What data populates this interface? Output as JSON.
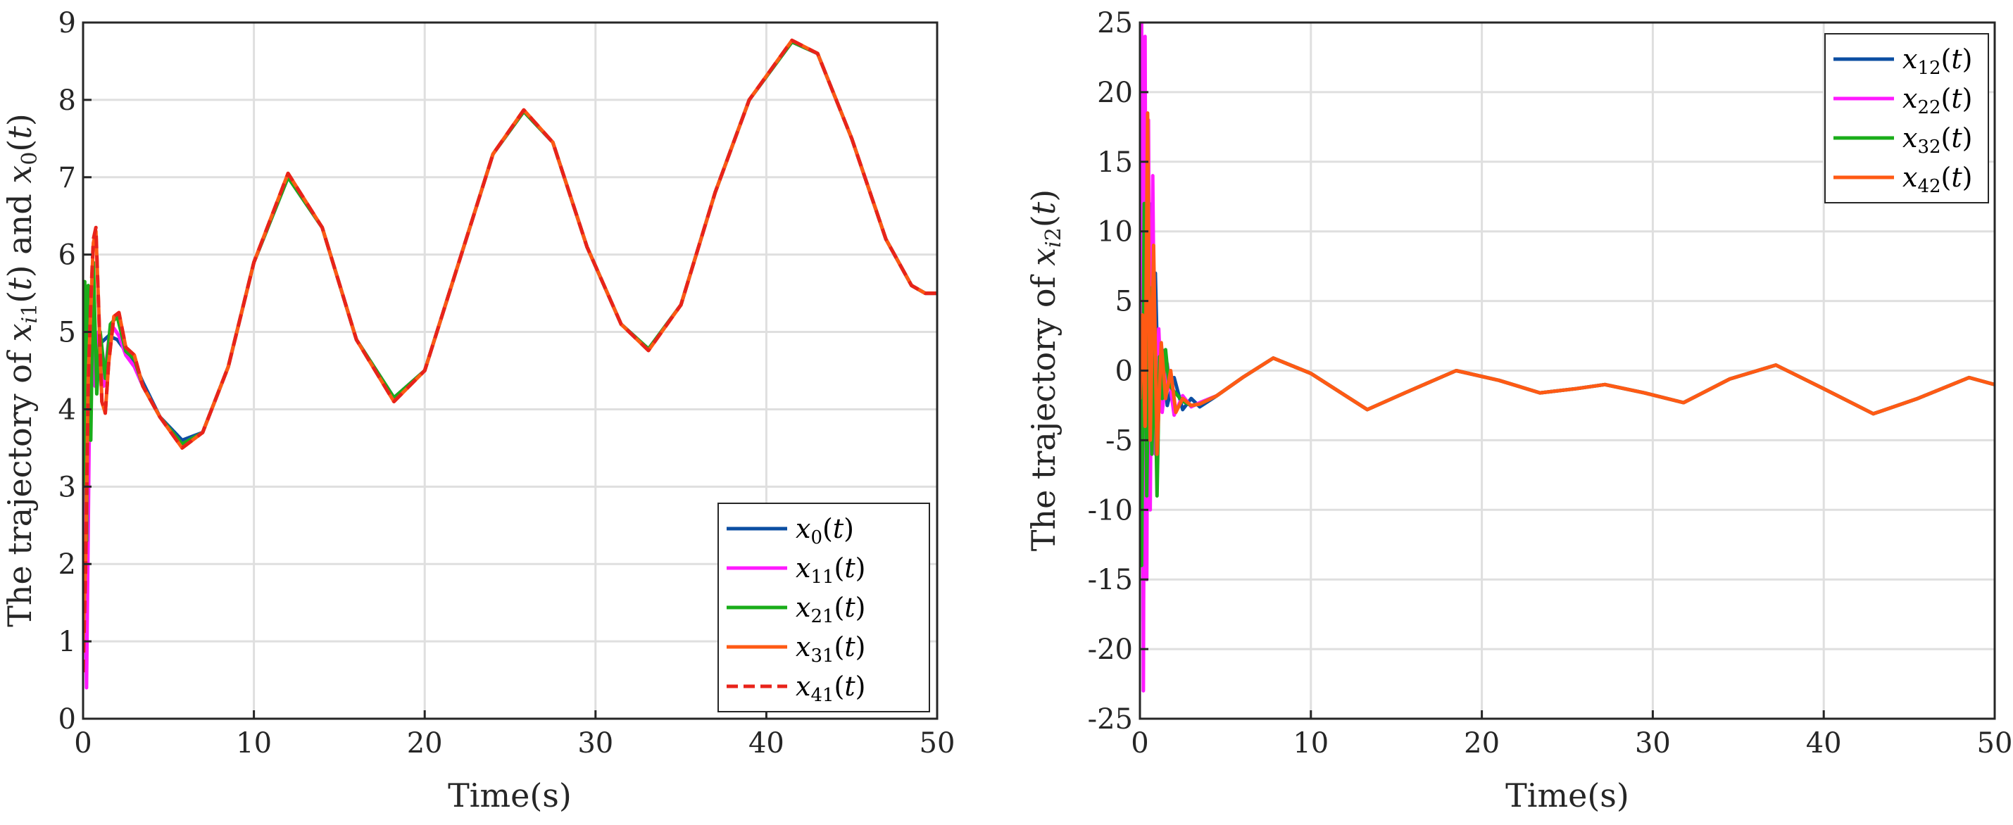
{
  "chart_data": [
    {
      "type": "line",
      "xlabel": "Time(s)",
      "ylabel": "The trajectory of x_i1(t) and x_0(t)",
      "xlim": [
        0,
        50
      ],
      "ylim": [
        0,
        9
      ],
      "xticks": [
        "0",
        "10",
        "20",
        "30",
        "40",
        "50"
      ],
      "yticks": [
        "0",
        "1",
        "2",
        "3",
        "4",
        "5",
        "6",
        "7",
        "8",
        "9"
      ],
      "grid": true,
      "legend_position": "bottom-right",
      "series": [
        {
          "name": "x_0(t)",
          "legend": "x0(t)",
          "color": "#0b4ea2",
          "dash": "solid",
          "x": [
            0,
            0.3,
            0.6,
            1.0,
            1.5,
            2.0,
            2.5,
            3.0,
            3.5,
            4.5,
            5.8,
            7,
            8.5,
            10,
            12,
            14,
            16,
            18.2,
            20,
            22,
            24,
            25.8,
            27.5,
            29.5,
            31.5,
            33.1,
            35,
            37,
            39,
            41.5,
            43,
            45,
            47,
            48.5,
            49.3,
            50
          ],
          "y": [
            4.0,
            4.3,
            4.6,
            4.85,
            4.95,
            4.9,
            4.75,
            4.6,
            4.35,
            3.9,
            3.6,
            3.7,
            4.55,
            5.9,
            7.0,
            6.35,
            4.9,
            4.15,
            4.5,
            5.9,
            7.3,
            7.85,
            7.45,
            6.1,
            5.1,
            4.78,
            5.35,
            6.8,
            8.0,
            8.75,
            8.6,
            7.5,
            6.2,
            5.6,
            5.5,
            5.5
          ]
        },
        {
          "name": "x_11(t)",
          "legend": "x11(t)",
          "color": "#ff1aff",
          "dash": "solid",
          "x": [
            0,
            0.2,
            0.35,
            0.5,
            0.7,
            0.9,
            1.2,
            1.5,
            1.8,
            2.1,
            2.5,
            3.0,
            3.5,
            4.5,
            5.8,
            7,
            8.5,
            10,
            12,
            14,
            16,
            18.2,
            20,
            22,
            24,
            25.8,
            27.5,
            29.5,
            31.5,
            33.1,
            35,
            37,
            39,
            41.5,
            43,
            45,
            47,
            48.5,
            49.3,
            50
          ],
          "y": [
            4.0,
            0.4,
            3.5,
            5.1,
            4.3,
            5.0,
            4.3,
            4.9,
            5.05,
            4.95,
            4.7,
            4.55,
            4.3,
            3.9,
            3.55,
            3.7,
            4.55,
            5.9,
            7.0,
            6.35,
            4.9,
            4.15,
            4.5,
            5.9,
            7.3,
            7.85,
            7.45,
            6.1,
            5.1,
            4.78,
            5.35,
            6.8,
            8.0,
            8.75,
            8.6,
            7.5,
            6.2,
            5.6,
            5.5,
            5.5
          ]
        },
        {
          "name": "x_21(t)",
          "legend": "x21(t)",
          "color": "#1aad1a",
          "dash": "solid",
          "x": [
            0,
            0.1,
            0.2,
            0.3,
            0.45,
            0.6,
            0.8,
            1.0,
            1.3,
            1.6,
            2.0,
            2.5,
            3.0,
            3.5,
            4.5,
            5.8,
            7,
            8.5,
            10,
            12,
            14,
            16,
            18.2,
            20,
            22,
            24,
            25.8,
            27.5,
            29.5,
            31.5,
            33.1,
            35,
            37,
            39,
            41.5,
            43,
            45,
            47,
            48.5,
            49.3,
            50
          ],
          "y": [
            3.0,
            5.65,
            2.3,
            5.6,
            3.6,
            5.9,
            4.2,
            5.0,
            4.4,
            5.1,
            5.2,
            4.75,
            4.65,
            4.3,
            3.9,
            3.55,
            3.7,
            4.55,
            5.9,
            7.0,
            6.35,
            4.9,
            4.15,
            4.5,
            5.9,
            7.3,
            7.85,
            7.45,
            6.1,
            5.1,
            4.78,
            5.35,
            6.8,
            8.0,
            8.75,
            8.6,
            7.5,
            6.2,
            5.6,
            5.5,
            5.5
          ]
        },
        {
          "name": "x_31(t)",
          "legend": "x31(t)",
          "color": "#ff5a14",
          "dash": "solid",
          "x": [
            0,
            0.15,
            0.3,
            0.45,
            0.6,
            0.75,
            0.9,
            1.1,
            1.3,
            1.5,
            1.8,
            2.1,
            2.5,
            3.0,
            3.5,
            4.5,
            5.8,
            7,
            8.5,
            10,
            12,
            14,
            16,
            18.2,
            20,
            22,
            24,
            25.8,
            27.5,
            29.5,
            31.5,
            33.1,
            35,
            37,
            39,
            41.5,
            43,
            45,
            47,
            48.5,
            49.3,
            50
          ],
          "y": [
            1.0,
            2.0,
            4.4,
            5.3,
            6.15,
            6.3,
            5.4,
            4.1,
            3.95,
            4.6,
            5.2,
            5.25,
            4.8,
            4.7,
            4.3,
            3.9,
            3.5,
            3.7,
            4.55,
            5.9,
            7.05,
            6.35,
            4.9,
            4.1,
            4.5,
            5.9,
            7.3,
            7.87,
            7.45,
            6.1,
            5.1,
            4.76,
            5.35,
            6.8,
            8.0,
            8.77,
            8.6,
            7.5,
            6.2,
            5.6,
            5.5,
            5.5
          ]
        },
        {
          "name": "x_41(t)",
          "legend": "x41(t)",
          "color": "#e8231a",
          "dash": "dashed",
          "x": [
            0,
            0.15,
            0.3,
            0.45,
            0.6,
            0.75,
            0.9,
            1.1,
            1.3,
            1.5,
            1.8,
            2.1,
            2.5,
            3.0,
            3.5,
            4.5,
            5.8,
            7,
            8.5,
            10,
            12,
            14,
            16,
            18.2,
            20,
            22,
            24,
            25.8,
            27.5,
            29.5,
            31.5,
            33.1,
            35,
            37,
            39,
            41.5,
            43,
            45,
            47,
            48.5,
            49.3,
            50
          ],
          "y": [
            0.6,
            1.9,
            4.3,
            5.4,
            6.2,
            6.35,
            5.4,
            4.1,
            3.95,
            4.6,
            5.2,
            5.25,
            4.8,
            4.7,
            4.3,
            3.9,
            3.5,
            3.7,
            4.55,
            5.9,
            7.05,
            6.35,
            4.9,
            4.1,
            4.5,
            5.9,
            7.3,
            7.87,
            7.45,
            6.1,
            5.1,
            4.76,
            5.35,
            6.8,
            8.0,
            8.77,
            8.6,
            7.5,
            6.2,
            5.6,
            5.5,
            5.5
          ]
        }
      ]
    },
    {
      "type": "line",
      "xlabel": "Time(s)",
      "ylabel": "The trajectory of x_i2(t)",
      "xlim": [
        0,
        50
      ],
      "ylim": [
        -25,
        25
      ],
      "xticks": [
        "0",
        "10",
        "20",
        "30",
        "40",
        "50"
      ],
      "yticks": [
        "25",
        "20",
        "15",
        "10",
        "5",
        "0",
        "-5",
        "-10",
        "-15",
        "-20",
        "-25"
      ],
      "grid": true,
      "legend_position": "top-right",
      "series": [
        {
          "name": "x_12(t)",
          "legend": "x12(t)",
          "color": "#0b4ea2",
          "dash": "solid",
          "x": [
            0,
            0.1,
            0.2,
            0.3,
            0.4,
            0.55,
            0.7,
            0.9,
            1.1,
            1.3,
            1.6,
            2.0,
            2.5,
            3.0,
            3.5,
            4.5,
            6,
            7.8,
            10,
            13.3,
            15.5,
            18.5,
            21,
            23.4,
            25.5,
            27.2,
            29.5,
            31.8,
            34.5,
            37.2,
            40,
            42.9,
            45.5,
            48.5,
            50
          ],
          "y": [
            -2,
            22.5,
            -18,
            20,
            -8,
            12,
            -4,
            7,
            -3,
            1.5,
            -2.5,
            -0.5,
            -2.8,
            -2,
            -2.6,
            -1.8,
            -0.5,
            0.9,
            -0.2,
            -2.8,
            -1.6,
            0,
            -0.7,
            -1.6,
            -1.3,
            -1,
            -1.6,
            -2.3,
            -0.6,
            0.4,
            -1.3,
            -3.1,
            -2,
            -0.5,
            -1
          ]
        },
        {
          "name": "x_22(t)",
          "legend": "x22(t)",
          "color": "#ff1aff",
          "dash": "solid",
          "x": [
            0,
            0.1,
            0.2,
            0.3,
            0.4,
            0.5,
            0.6,
            0.75,
            0.9,
            1.1,
            1.3,
            1.6,
            2.0,
            2.5,
            3.0,
            3.5,
            4.5,
            6,
            7.8,
            10,
            13.3,
            15.5,
            18.5,
            21,
            23.4,
            25.5,
            27.2,
            29.5,
            31.8,
            34.5,
            37.2,
            40,
            42.9,
            45.5,
            48.5,
            50
          ],
          "y": [
            -2,
            25,
            -23,
            24,
            -15,
            18,
            -10,
            14,
            -6,
            3,
            -3,
            0.5,
            -3.2,
            -1.8,
            -2.6,
            -2.3,
            -1.8,
            -0.5,
            0.9,
            -0.2,
            -2.8,
            -1.6,
            0,
            -0.7,
            -1.6,
            -1.3,
            -1,
            -1.6,
            -2.3,
            -0.6,
            0.4,
            -1.3,
            -3.1,
            -2,
            -0.5,
            -1
          ]
        },
        {
          "name": "x_32(t)",
          "legend": "x32(t)",
          "color": "#1aad1a",
          "dash": "solid",
          "x": [
            0,
            0.1,
            0.25,
            0.4,
            0.55,
            0.7,
            0.85,
            1.0,
            1.15,
            1.3,
            1.5,
            1.7,
            2.0,
            2.5,
            3.0,
            3.5,
            4.5,
            6,
            7.8,
            10,
            13.3,
            15.5,
            18.5,
            21,
            23.4,
            25.5,
            27.2,
            29.5,
            31.8,
            34.5,
            37.2,
            40,
            42.9,
            45.5,
            48.5,
            50
          ],
          "y": [
            -2,
            -14,
            12,
            -9,
            6,
            -6,
            3,
            -9,
            1,
            -2,
            1.5,
            -1,
            -1.5,
            -2.2,
            -2.5,
            -2.4,
            -1.8,
            -0.5,
            0.9,
            -0.2,
            -2.8,
            -1.6,
            0,
            -0.7,
            -1.6,
            -1.3,
            -1,
            -1.6,
            -2.3,
            -0.6,
            0.4,
            -1.3,
            -3.1,
            -2,
            -0.5,
            -1
          ]
        },
        {
          "name": "x_42(t)",
          "legend": "x42(t)",
          "color": "#ff5a14",
          "dash": "solid",
          "x": [
            0,
            0.15,
            0.3,
            0.45,
            0.6,
            0.8,
            1.0,
            1.25,
            1.5,
            1.8,
            2.1,
            2.5,
            3.0,
            3.5,
            4.5,
            6,
            7.8,
            10,
            13.3,
            15.5,
            18.5,
            21,
            23.4,
            25.5,
            27.2,
            29.5,
            31.8,
            34.5,
            37.2,
            40,
            42.9,
            45.5,
            48.5,
            50
          ],
          "y": [
            -2,
            4,
            -4,
            18.5,
            -5,
            9,
            -6,
            2,
            -2,
            0,
            -3,
            -2,
            -2.5,
            -2.4,
            -1.8,
            -0.5,
            0.9,
            -0.2,
            -2.8,
            -1.6,
            0,
            -0.7,
            -1.6,
            -1.3,
            -1,
            -1.6,
            -2.3,
            -0.6,
            0.4,
            -1.3,
            -3.1,
            -2,
            -0.5,
            -1
          ]
        }
      ]
    }
  ]
}
